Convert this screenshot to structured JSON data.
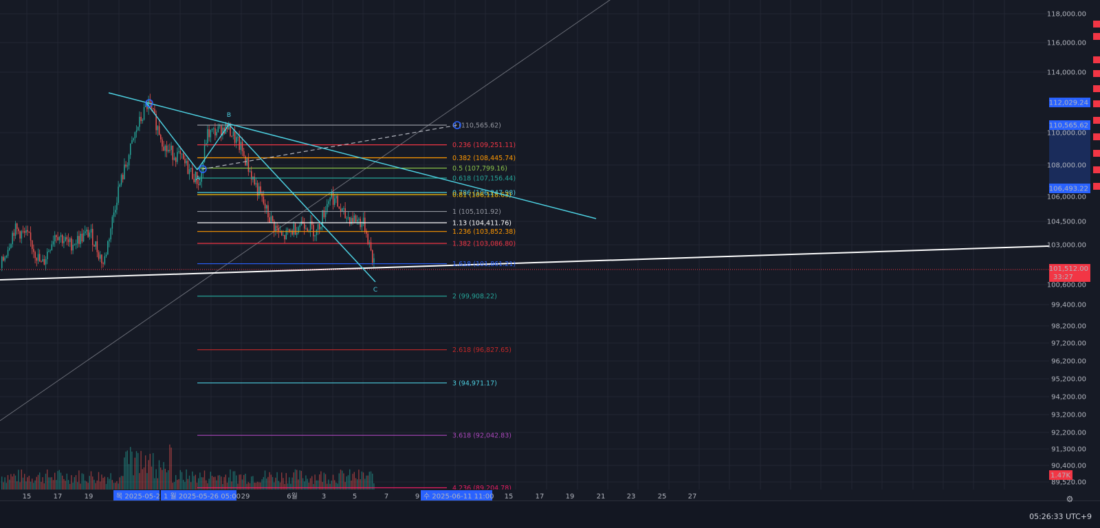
{
  "chart_data": {
    "type": "candlestick",
    "symbol_price_axis": {
      "ticks": [
        118000,
        116000,
        114000,
        110000,
        108000,
        106000,
        104500,
        103000,
        100600,
        99400,
        98200,
        97200,
        96200,
        95200,
        94200,
        93200,
        92200,
        91300,
        90400,
        89520
      ],
      "tick_labels": [
        "118,000.00",
        "116,000.00",
        "114,000.00",
        "110,000.00",
        "108,000.00",
        "106,000.00",
        "104,500.00",
        "103,000.00",
        "100,600.00",
        "99,400.00",
        "98,200.00",
        "97,200.00",
        "96,200.00",
        "95,200.00",
        "94,200.00",
        "93,200.00",
        "92,200.00",
        "91,300.00",
        "90,400.00",
        "89,520.00"
      ],
      "price_badges": [
        {
          "label": "112,029.24",
          "color": "#2962ff"
        },
        {
          "label": "110,565.62",
          "color": "#2962ff"
        },
        {
          "label": "106,493.22",
          "color": "#2962ff"
        }
      ],
      "last_price": {
        "label": "101,512.00",
        "countdown": "33:27",
        "color": "#f23645"
      },
      "volume_badge": {
        "label": "1.47K",
        "color": "#f23645"
      }
    },
    "time_axis": {
      "labels": [
        "15",
        "17",
        "19",
        "29",
        "6월",
        "3",
        "5",
        "7",
        "9",
        "15",
        "17",
        "19",
        "21",
        "23",
        "25",
        "27"
      ],
      "highlights": [
        "목 2025-05-22",
        "1 월 2025-05-26   05:00",
        "수 2025-06-11   11:00"
      ]
    },
    "fib_levels": [
      {
        "ratio": "0",
        "price": 110565.62,
        "label": "0 (110,565.62)",
        "color": "#9598a1"
      },
      {
        "ratio": "0.236",
        "price": 109251.11,
        "label": "0.236 (109,251.11)",
        "color": "#f23645"
      },
      {
        "ratio": "0.382",
        "price": 108445.74,
        "label": "0.382 (108,445.74)",
        "color": "#ff9800"
      },
      {
        "ratio": "0.5",
        "price": 107799.16,
        "label": "0.5 (107,799.16)",
        "color": "#8bc34a"
      },
      {
        "ratio": "0.618",
        "price": 107156.44,
        "label": "0.618 (107,156.44)",
        "color": "#26a69a"
      },
      {
        "ratio": "0.786",
        "price": 106247.98,
        "label": "0.786 (106,247.98)",
        "color": "#4dd0e1"
      },
      {
        "ratio": "0.81",
        "price": 106118.63,
        "label": "0.81 (106,118.63)",
        "color": "#ffc107"
      },
      {
        "ratio": "1",
        "price": 105101.92,
        "label": "1 (105,101.92)",
        "color": "#9598a1"
      },
      {
        "ratio": "1.13",
        "price": 104411.76,
        "label": "1.13 (104,411.76)",
        "color": "#ffffff"
      },
      {
        "ratio": "1.236",
        "price": 103852.38,
        "label": "1.236 (103,852.38)",
        "color": "#ff9800"
      },
      {
        "ratio": "1.382",
        "price": 103086.8,
        "label": "1.382 (103,086.80)",
        "color": "#f23645"
      },
      {
        "ratio": "1.618",
        "price": 101861.21,
        "label": "1.618 (101,861.21)",
        "color": "#2962ff"
      },
      {
        "ratio": "2",
        "price": 99908.22,
        "label": "2 (99,908.22)",
        "color": "#26a69a"
      },
      {
        "ratio": "2.618",
        "price": 96827.65,
        "label": "2.618 (96,827.65)",
        "color": "#c62828"
      },
      {
        "ratio": "3",
        "price": 94971.17,
        "label": "3 (94,971.17)",
        "color": "#4dd0e1"
      },
      {
        "ratio": "3.618",
        "price": 92042.83,
        "label": "3.618 (92,042.83)",
        "color": "#ab47bc"
      },
      {
        "ratio": "4.236",
        "price": 89204.78,
        "label": "4.236 (89,204.78)",
        "color": "#e91e63"
      }
    ],
    "wave_labels": [
      "A",
      "B",
      "C"
    ],
    "colors": {
      "up": "#26a69a",
      "down": "#ef5350",
      "trend": "#4dd0e1",
      "background": "#161a25",
      "grid": "#232632"
    }
  },
  "status": {
    "clock": "05:26:33 UTC+9"
  },
  "icons": {
    "settings": "gear-icon"
  }
}
